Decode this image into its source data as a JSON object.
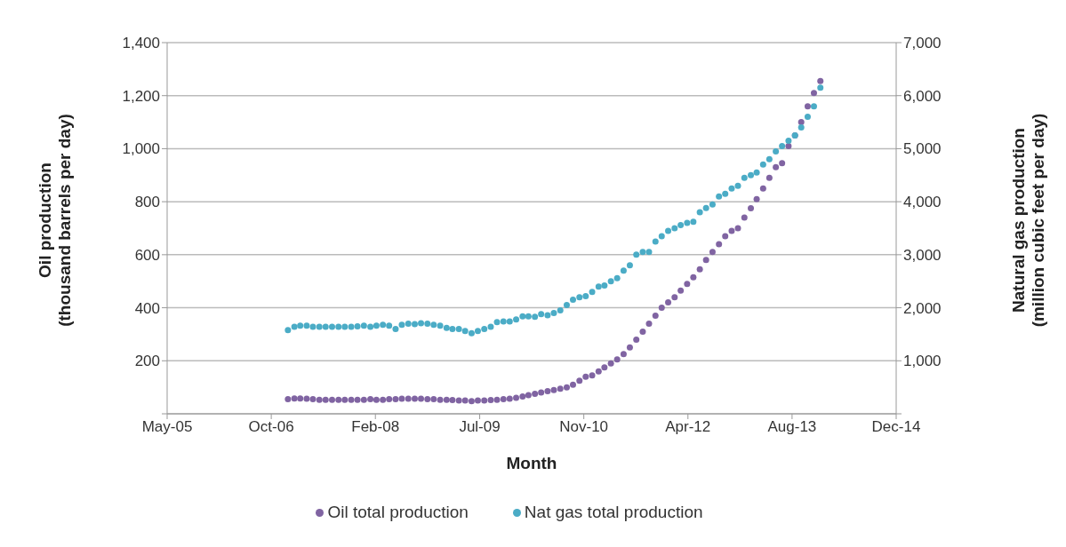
{
  "chart_data": {
    "type": "scatter",
    "xlabel": "Month",
    "ylabel": "Oil production\n(thousand barrels per day)",
    "y2label": "Natural gas production\n(million cubic feet per day)",
    "x": [
      "2007-01",
      "2007-02",
      "2007-03",
      "2007-04",
      "2007-05",
      "2007-06",
      "2007-07",
      "2007-08",
      "2007-09",
      "2007-10",
      "2007-11",
      "2007-12",
      "2008-01",
      "2008-02",
      "2008-03",
      "2008-04",
      "2008-05",
      "2008-06",
      "2008-07",
      "2008-08",
      "2008-09",
      "2008-10",
      "2008-11",
      "2008-12",
      "2009-01",
      "2009-02",
      "2009-03",
      "2009-04",
      "2009-05",
      "2009-06",
      "2009-07",
      "2009-08",
      "2009-09",
      "2009-10",
      "2009-11",
      "2009-12",
      "2010-01",
      "2010-02",
      "2010-03",
      "2010-04",
      "2010-05",
      "2010-06",
      "2010-07",
      "2010-08",
      "2010-09",
      "2010-10",
      "2010-11",
      "2010-12",
      "2011-01",
      "2011-02",
      "2011-03",
      "2011-04",
      "2011-05",
      "2011-06",
      "2011-07",
      "2011-08",
      "2011-09",
      "2011-10",
      "2011-11",
      "2011-12",
      "2012-01",
      "2012-02",
      "2012-03",
      "2012-04",
      "2012-05",
      "2012-06",
      "2012-07",
      "2012-08",
      "2012-09",
      "2012-10",
      "2012-11",
      "2012-12",
      "2013-01",
      "2013-02",
      "2013-03",
      "2013-04",
      "2013-05",
      "2013-06",
      "2013-07",
      "2013-08",
      "2013-09",
      "2013-10",
      "2013-11",
      "2013-12",
      "2014-01"
    ],
    "series": [
      {
        "name": "Oil total production",
        "color": "#8064a2",
        "values": [
          55,
          58,
          58,
          57,
          55,
          53,
          53,
          53,
          53,
          53,
          53,
          53,
          53,
          55,
          53,
          53,
          55,
          55,
          57,
          57,
          57,
          57,
          55,
          55,
          53,
          53,
          52,
          50,
          50,
          48,
          50,
          50,
          52,
          53,
          55,
          57,
          60,
          65,
          70,
          75,
          80,
          85,
          90,
          95,
          100,
          110,
          125,
          140,
          145,
          160,
          175,
          190,
          205,
          225,
          250,
          280,
          310,
          340,
          370,
          400,
          420,
          440,
          465,
          490,
          515,
          545,
          580,
          610,
          640,
          670,
          690,
          700,
          740,
          775,
          810,
          850,
          890,
          930,
          945,
          1010,
          1050,
          1100,
          1160,
          1210,
          1255
        ]
      },
      {
        "name": "Nat gas total production",
        "color": "#4bacc6",
        "axis": "y2",
        "values": [
          1580,
          1640,
          1660,
          1660,
          1640,
          1640,
          1640,
          1640,
          1640,
          1640,
          1640,
          1650,
          1660,
          1640,
          1660,
          1680,
          1660,
          1600,
          1680,
          1700,
          1690,
          1710,
          1700,
          1680,
          1660,
          1620,
          1600,
          1600,
          1560,
          1520,
          1560,
          1600,
          1640,
          1730,
          1740,
          1740,
          1780,
          1840,
          1840,
          1830,
          1880,
          1860,
          1900,
          1950,
          2050,
          2150,
          2200,
          2220,
          2300,
          2400,
          2420,
          2500,
          2560,
          2700,
          2800,
          3000,
          3050,
          3050,
          3250,
          3350,
          3450,
          3500,
          3560,
          3600,
          3620,
          3800,
          3880,
          3950,
          4100,
          4150,
          4250,
          4300,
          4450,
          4500,
          4550,
          4700,
          4800,
          4950,
          5050,
          5150,
          5250,
          5400,
          5600,
          5800,
          6150
        ]
      }
    ],
    "xlim": [
      "2005-05-31",
      "2014-12-31"
    ],
    "xticks": [
      {
        "value": "2005-05-31",
        "label": "May-05"
      },
      {
        "value": "2006-10-13",
        "label": "Oct-06"
      },
      {
        "value": "2008-02-25",
        "label": "Feb-08"
      },
      {
        "value": "2009-07-10",
        "label": "Jul-09"
      },
      {
        "value": "2010-11-22",
        "label": "Nov-10"
      },
      {
        "value": "2012-04-05",
        "label": "Apr-12"
      },
      {
        "value": "2013-08-18",
        "label": "Aug-13"
      },
      {
        "value": "2014-12-31",
        "label": "Dec-14"
      }
    ],
    "ylim": [
      0,
      1400
    ],
    "yticks": [
      {
        "value": 0,
        "label": null
      },
      200,
      400,
      600,
      800,
      {
        "value": 1000,
        "label": "1,000"
      },
      {
        "value": 1200,
        "label": "1,200"
      },
      {
        "value": 1400,
        "label": "1,400"
      }
    ],
    "y2lim": [
      0,
      7000
    ],
    "y2ticks": [
      {
        "value": 0,
        "label": null
      },
      {
        "value": 1000,
        "label": "1,000"
      },
      {
        "value": 2000,
        "label": "2,000"
      },
      {
        "value": 3000,
        "label": "3,000"
      },
      {
        "value": 4000,
        "label": "4,000"
      },
      {
        "value": 5000,
        "label": "5,000"
      },
      {
        "value": 6000,
        "label": "6,000"
      },
      {
        "value": 7000,
        "label": "7,000"
      }
    ],
    "grid": "y",
    "legend": "bottom",
    "marker": "circle"
  }
}
